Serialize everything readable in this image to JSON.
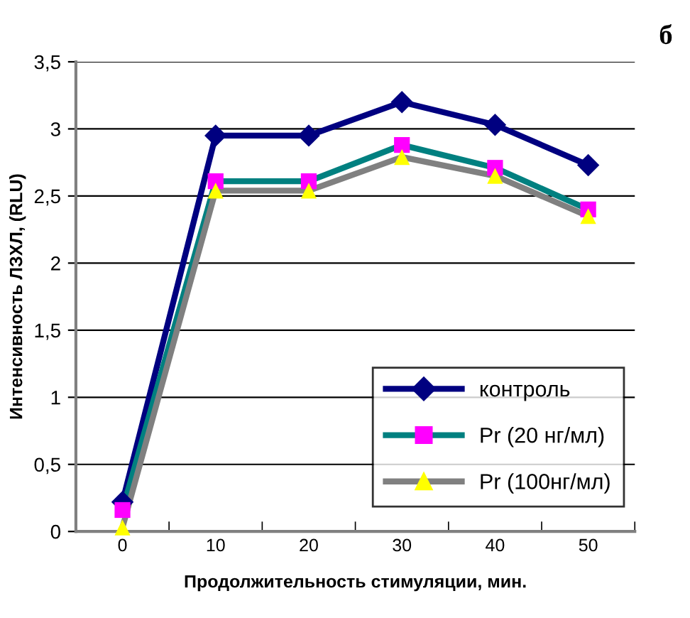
{
  "chart_data": {
    "type": "line",
    "xlabel": "Продолжительность стимуляции, мин.",
    "ylabel": "Интенсивность ЛЗХЛ, (RLU)",
    "annotations": [
      "б"
    ],
    "categories": [
      "0",
      "10",
      "20",
      "30",
      "40",
      "50"
    ],
    "series": [
      {
        "name": "контроль",
        "color": "#000080",
        "marker": "diamond",
        "values": [
          0.22,
          2.95,
          2.95,
          3.2,
          3.03,
          2.73
        ]
      },
      {
        "name": "Pr (20 нг/мл)",
        "color": "#008080",
        "marker": "square",
        "colors": [
          "#ff00ff",
          "#ff00ff",
          "#ff00ff",
          "#ff00ff",
          "#ff00ff",
          "#ff00ff"
        ],
        "values": [
          0.16,
          2.61,
          2.61,
          2.88,
          2.71,
          2.4
        ]
      },
      {
        "name": "Pr (100нг/мл)",
        "color": "#808080",
        "marker": "triangle",
        "colors": [
          "#ffff00",
          "#ffff00",
          "#ffff00",
          "#ffff00",
          "#ffff00",
          "#ffff00"
        ],
        "values": [
          0.03,
          2.54,
          2.54,
          2.79,
          2.65,
          2.35
        ]
      }
    ],
    "ylim": [
      0,
      3.5
    ],
    "yticks": [
      {
        "value": 0,
        "label": "0"
      },
      {
        "value": 0.5,
        "label": "0,5"
      },
      {
        "value": 1,
        "label": "1"
      },
      {
        "value": 1.5,
        "label": "1,5"
      },
      {
        "value": 2,
        "label": "2"
      },
      {
        "value": 2.5,
        "label": "2,5"
      },
      {
        "value": 3,
        "label": "3"
      },
      {
        "value": 3.5,
        "label": "3,5"
      }
    ],
    "grid": "y",
    "legend": "bottom right",
    "line_style": "solid"
  }
}
